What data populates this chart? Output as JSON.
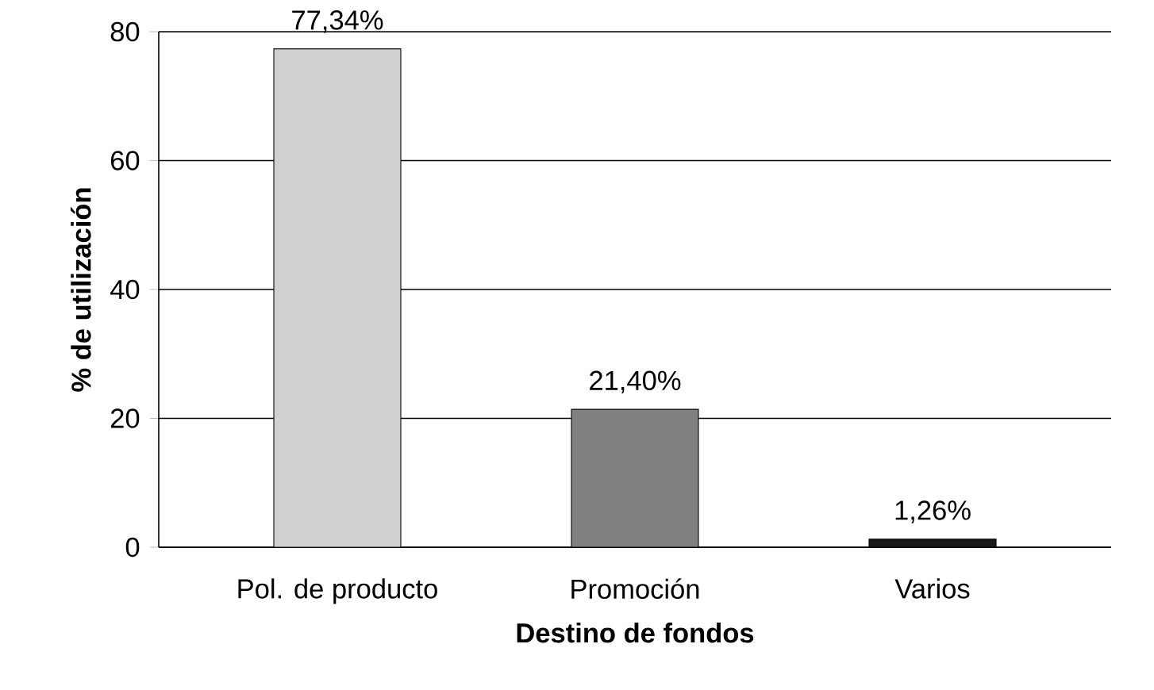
{
  "chart_data": {
    "type": "bar",
    "categories": [
      "Pol. de producto",
      "Promoción",
      "Varios"
    ],
    "values": [
      77.34,
      21.4,
      1.26
    ],
    "colors": [
      "#d0d0d0",
      "#808080",
      "#1a1a1a"
    ],
    "value_labels": [
      "77,34%",
      "21,40%",
      "1,26%"
    ],
    "xlabel": "Destino de fondos",
    "ylabel": "% de utilización",
    "ylim": [
      0,
      80
    ],
    "yticks": [
      0,
      20,
      40,
      60,
      80
    ],
    "grid": "y"
  }
}
